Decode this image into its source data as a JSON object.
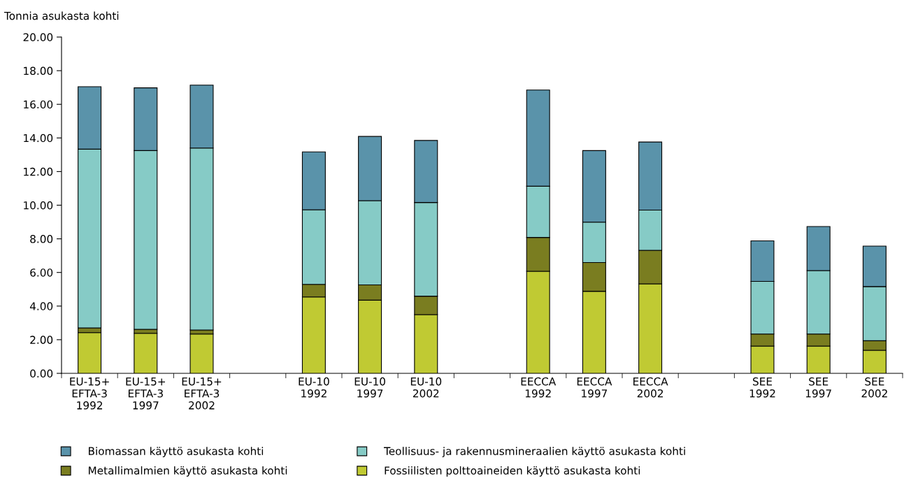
{
  "chart_data": {
    "type": "bar",
    "stacked": true,
    "ylabel": "Tonnia asukasta kohti",
    "categories": [
      "EU-15+\nEFTA-3\n1992",
      "EU-15+\nEFTA-3\n1997",
      "EU-15+\nEFTA-3\n2002",
      null,
      "EU-10\n1992",
      "EU-10\n1997",
      "EU-10\n2002",
      null,
      "EECCA\n1992",
      "EECCA\n1997",
      "EECCA\n2002",
      null,
      "SEE\n1992",
      "SEE\n1997",
      "SEE\n2002"
    ],
    "series": [
      {
        "name": "Fossiilisten polttoaineiden käyttö asukasta kohti",
        "color": "#c0ca33",
        "values": [
          2.42,
          2.38,
          2.34,
          null,
          4.54,
          4.35,
          3.49,
          null,
          6.07,
          4.88,
          5.32,
          null,
          1.62,
          1.62,
          1.37
        ]
      },
      {
        "name": "Metallimalmien käyttö asukasta kohti",
        "color": "#7a7d20",
        "values": [
          0.28,
          0.24,
          0.24,
          null,
          0.75,
          0.91,
          1.1,
          null,
          2.01,
          1.71,
          2.0,
          null,
          0.72,
          0.72,
          0.57
        ]
      },
      {
        "name": "Teollisuus- ja rakennusmineraalien käyttö asukasta kohti",
        "color": "#86cbc6",
        "values": [
          10.63,
          10.63,
          10.82,
          null,
          4.44,
          5.01,
          5.57,
          null,
          3.05,
          2.4,
          2.39,
          null,
          3.13,
          3.77,
          3.22
        ]
      },
      {
        "name": "Biomassan käyttö asukasta kohti",
        "color": "#5a93aa",
        "values": [
          3.72,
          3.73,
          3.74,
          null,
          3.44,
          3.82,
          3.69,
          null,
          5.72,
          4.26,
          4.05,
          null,
          2.41,
          2.62,
          2.41
        ]
      }
    ],
    "ylim": [
      0,
      20
    ],
    "yticks": [
      {
        "value": 0,
        "label": "0.00"
      },
      {
        "value": 2,
        "label": "2.00"
      },
      {
        "value": 4,
        "label": "4.00"
      },
      {
        "value": 6,
        "label": "6.00"
      },
      {
        "value": 8,
        "label": "8.00"
      },
      {
        "value": 10,
        "label": "10.00"
      },
      {
        "value": 12,
        "label": "12.00"
      },
      {
        "value": 14,
        "label": "14.00"
      },
      {
        "value": 16,
        "label": "16.00"
      },
      {
        "value": 18,
        "label": "18.00"
      },
      {
        "value": 20,
        "label": "20.00"
      }
    ],
    "legend": "bottom"
  }
}
